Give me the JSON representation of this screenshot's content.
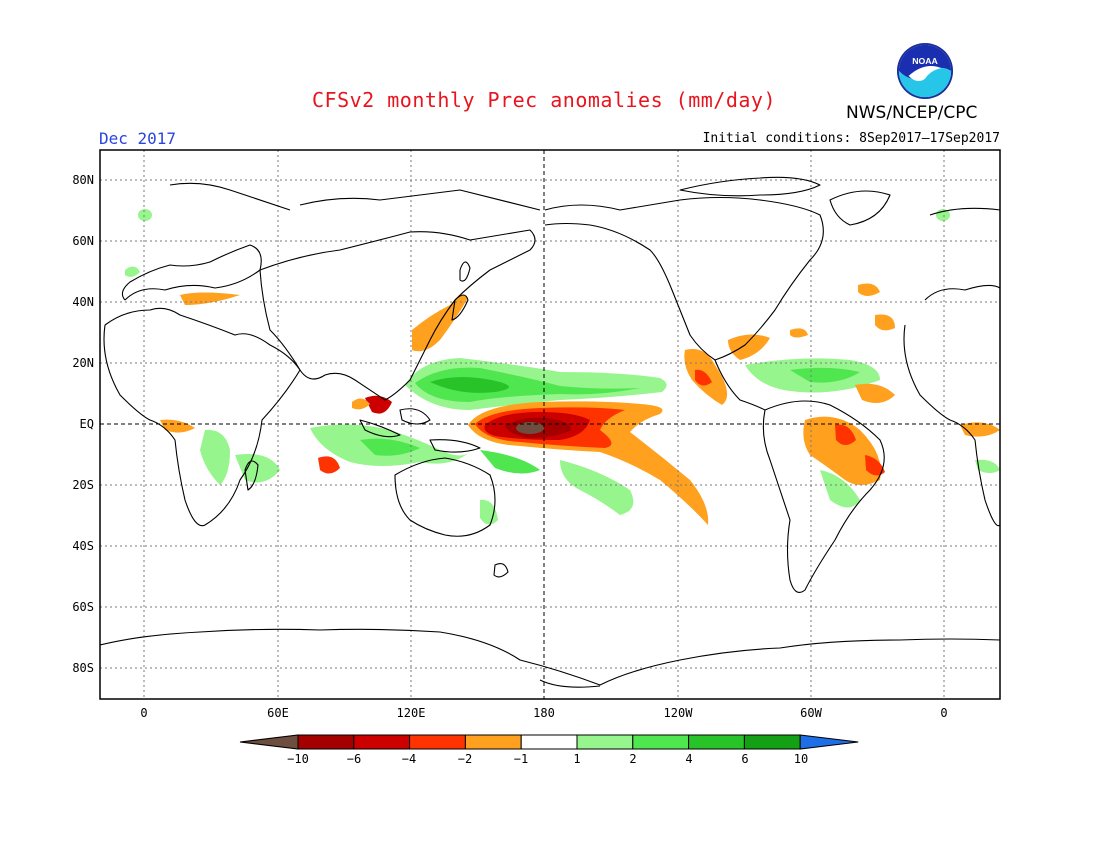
{
  "header": {
    "title": "CFSv2 monthly Prec anomalies (mm/day)",
    "agency": "NWS/NCEP/CPC",
    "logo_text": "NOAA",
    "month": "Dec 2017",
    "initial_conditions": "Initial conditions: 8Sep2017–17Sep2017"
  },
  "map": {
    "lat_labels": [
      "80N",
      "60N",
      "40N",
      "20N",
      "EQ",
      "20S",
      "40S",
      "60S",
      "80S"
    ],
    "lon_labels": [
      "0",
      "60E",
      "120E",
      "180",
      "120W",
      "60W",
      "0"
    ]
  },
  "legend": {
    "labels": [
      "−10",
      "−6",
      "−4",
      "−2",
      "−1",
      "1",
      "2",
      "4",
      "6",
      "10"
    ],
    "colors": [
      "#6e4e3e",
      "#a50000",
      "#cd0000",
      "#ff3300",
      "#ffa01e",
      "#ffffff",
      "#96f58c",
      "#50e650",
      "#28c328",
      "#14a014",
      "#1e6ee6"
    ]
  }
}
